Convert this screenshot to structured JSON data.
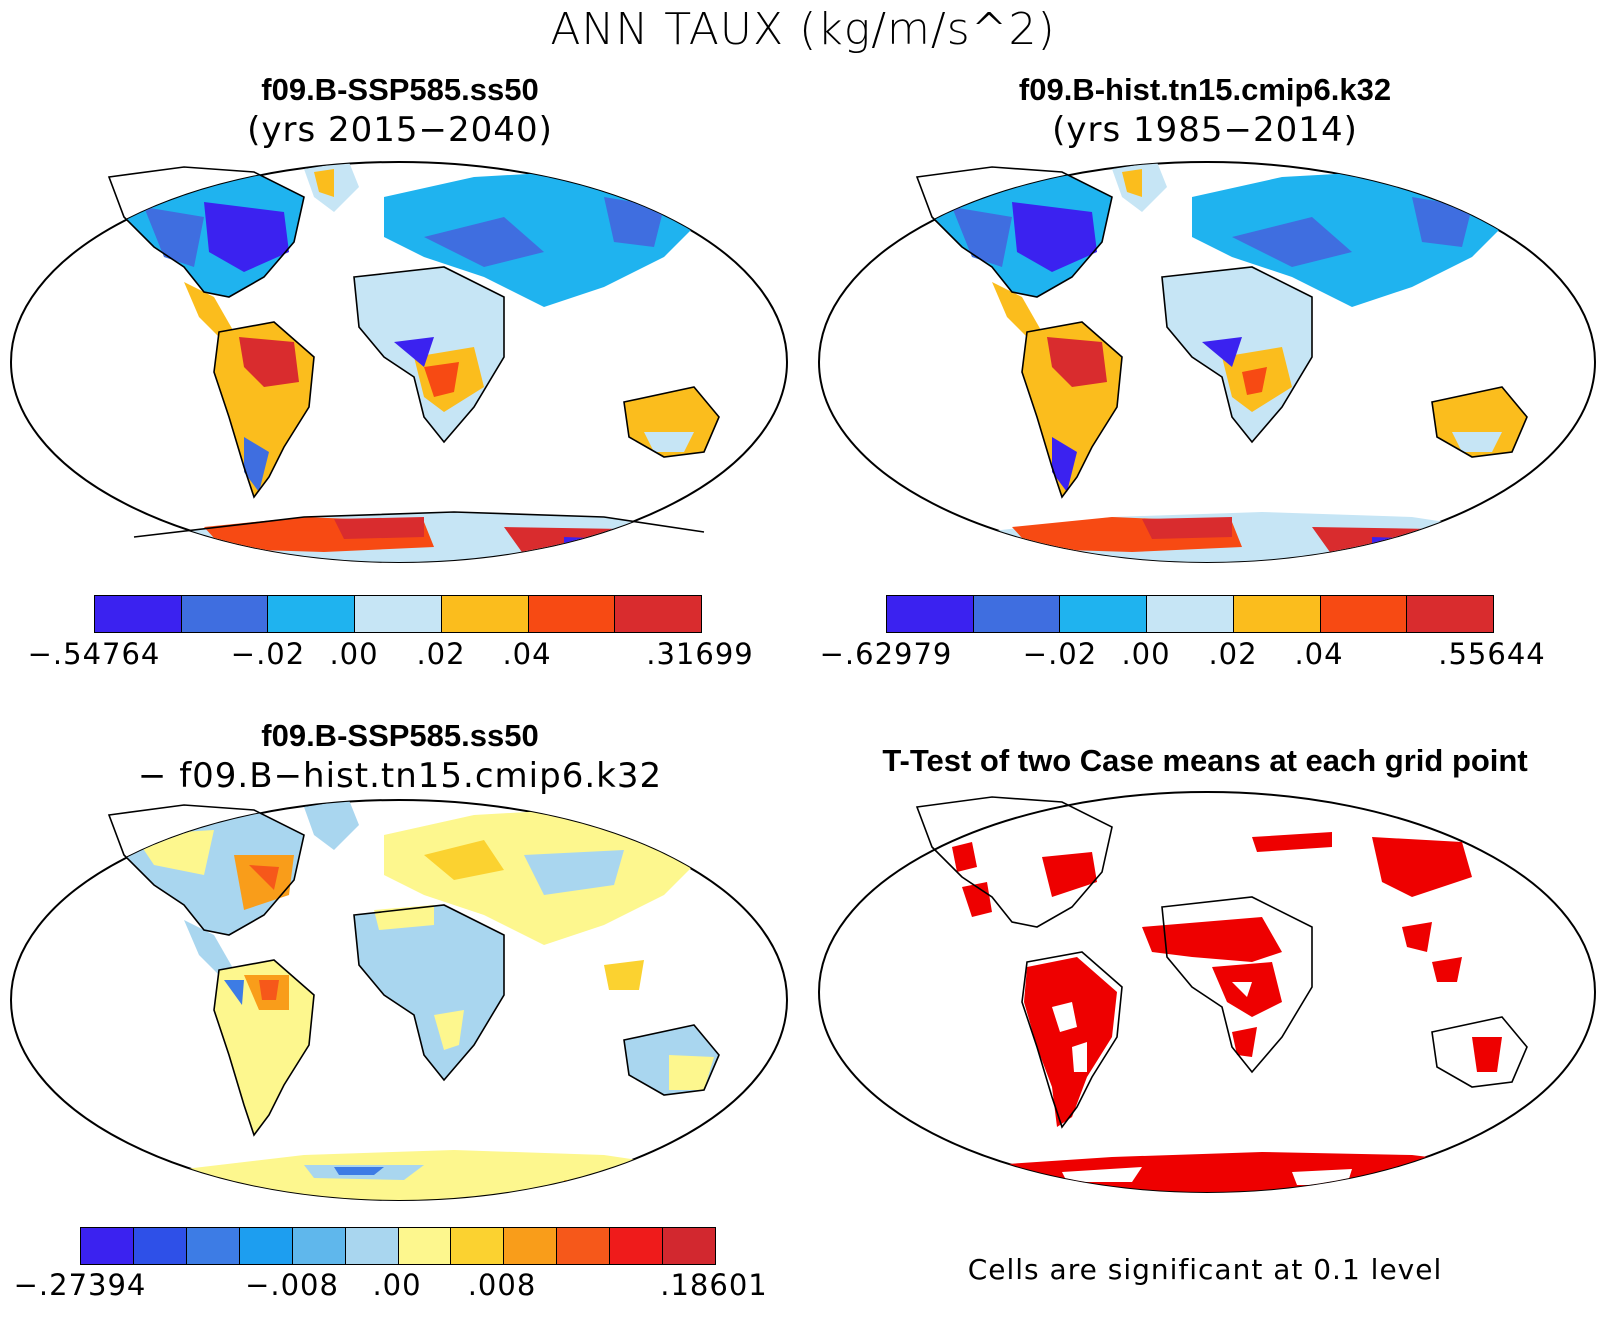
{
  "title": "ANN TAUX (kg/m/s^2)",
  "panels": [
    {
      "id": "case1",
      "title": "f09.B-SSP585.ss50",
      "subtitle": "(yrs 2015−2040)",
      "colorbar": {
        "colors": [
          "#3b22f0",
          "#3f6ee0",
          "#1fb3ef",
          "#c6e5f5",
          "#fbbd1d",
          "#f74a13",
          "#d92c2e"
        ],
        "labels": [
          "−.54764",
          "−.02",
          ".00",
          ".02",
          ".04",
          ".31699"
        ]
      }
    },
    {
      "id": "case2",
      "title": "f09.B-hist.tn15.cmip6.k32",
      "subtitle": "(yrs 1985−2014)",
      "colorbar": {
        "colors": [
          "#3b22f0",
          "#3f6ee0",
          "#1fb3ef",
          "#c6e5f5",
          "#fbbd1d",
          "#f74a13",
          "#d92c2e"
        ],
        "labels": [
          "−.62979",
          "−.02",
          ".00",
          ".02",
          ".04",
          ".55644"
        ]
      }
    },
    {
      "id": "diff",
      "title": "f09.B-SSP585.ss50",
      "subtitle": "− f09.B−hist.tn15.cmip6.k32",
      "colorbar": {
        "colors": [
          "#3b22f0",
          "#2e50e8",
          "#3d7ce5",
          "#1d9ef0",
          "#5fb7ec",
          "#a9d6ef",
          "#fdf78e",
          "#fbd230",
          "#f99d1a",
          "#f6581a",
          "#ef1b1b",
          "#d2282f"
        ],
        "labels": [
          "−.27394",
          "−.008",
          ".00",
          ".008",
          ".18601"
        ]
      }
    },
    {
      "id": "ttest",
      "title": "T-Test of two Case means at each grid point",
      "note": "Cells are significant at 0.1 level",
      "sig_color": "#ee0000"
    }
  ]
}
